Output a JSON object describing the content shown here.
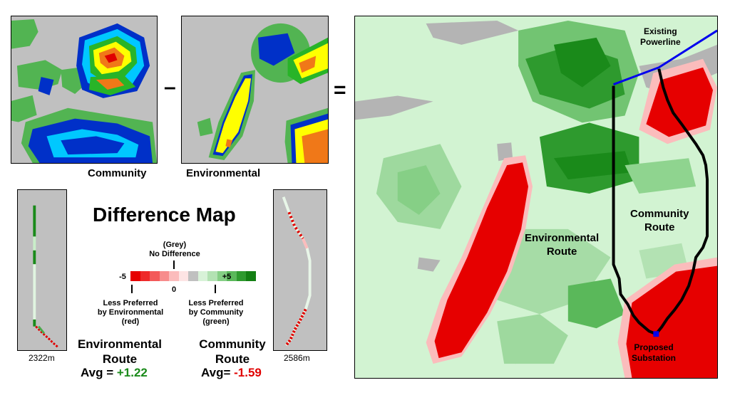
{
  "equation": {
    "minus": "–",
    "equals": "=",
    "community_label": "Community",
    "environmental_label": "Environmental"
  },
  "difference": {
    "title": "Difference Map",
    "grey_label": "(Grey)",
    "no_difference": "No Difference",
    "scale_min": "-5",
    "scale_zero": "0",
    "scale_max": "+5",
    "less_env_1": "Less Preferred",
    "less_env_2": "by Environmental",
    "less_env_3": "(red)",
    "less_com_1": "Less Preferred",
    "less_com_2": "by Community",
    "less_com_3": "(green)",
    "scale_colors": [
      "#e60000",
      "#ee2a2a",
      "#f35a5a",
      "#f78c8c",
      "#fbbcbc",
      "#fde4e4",
      "#c0c0c0",
      "#d8f2d8",
      "#b3e2b3",
      "#86cf86",
      "#5ab85a",
      "#2e9a2e",
      "#137f13"
    ]
  },
  "env_route": {
    "title_1": "Environmental",
    "title_2": "Route",
    "avg_label": "Avg = ",
    "avg_value": "+1.22",
    "avg_color": "#1a8a1a",
    "length": "2322m"
  },
  "com_route": {
    "title_1": "Community",
    "title_2": "Route",
    "avg_label": "Avg= ",
    "avg_value": "-1.59",
    "avg_color": "#e00000",
    "length": "2586m"
  },
  "big_map": {
    "powerline_1": "Existing",
    "powerline_2": "Powerline",
    "community_route_1": "Community",
    "community_route_2": "Route",
    "env_route_1": "Environmental",
    "env_route_2": "Route",
    "substation_1": "Proposed",
    "substation_2": "Substation",
    "powerline_color": "#0000ee"
  }
}
